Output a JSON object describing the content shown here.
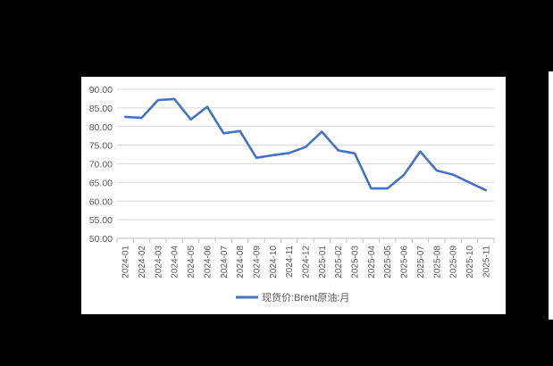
{
  "chart_data": {
    "type": "line",
    "title": "",
    "xlabel": "",
    "ylabel": "",
    "ylim": [
      50,
      90
    ],
    "yticks": [
      "50.00",
      "55.00",
      "60.00",
      "65.00",
      "70.00",
      "75.00",
      "80.00",
      "85.00",
      "90.00"
    ],
    "grid": true,
    "legend_position": "bottom",
    "categories": [
      "2024-01",
      "2024-02",
      "2024-03",
      "2024-04",
      "2024-05",
      "2024-06",
      "2024-07",
      "2024-08",
      "2024-09",
      "2024-10",
      "2024-11",
      "2024-12",
      "2025-01",
      "2025-02",
      "2025-03",
      "2025-04",
      "2025-05",
      "2025-06",
      "2025-07",
      "2025-08",
      "2025-09",
      "2025-10",
      "2025-11"
    ],
    "series": [
      {
        "name": "现货价:Brent原油:月",
        "color": "#4472C4",
        "values": [
          82.6,
          82.3,
          87.1,
          87.4,
          81.9,
          85.3,
          78.2,
          78.8,
          71.6,
          72.3,
          72.9,
          74.5,
          78.6,
          73.6,
          72.8,
          63.4,
          63.4,
          67.0,
          73.3,
          68.2,
          67.1,
          65.0,
          62.9
        ]
      }
    ]
  },
  "colors": {
    "background": "#000000",
    "panel": "#ffffff",
    "gridline": "#d9d9d9",
    "axis_text": "#595959",
    "line": "#4472C4"
  }
}
